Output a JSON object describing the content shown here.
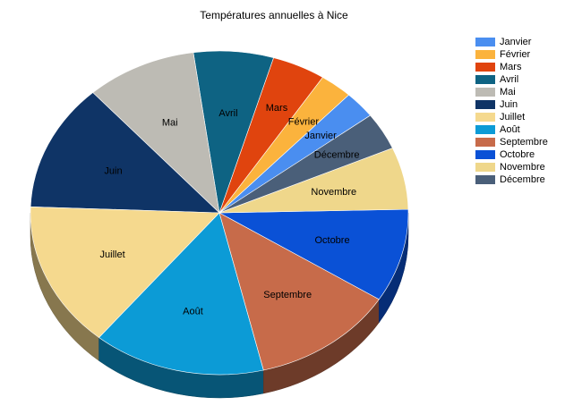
{
  "chart_data": {
    "type": "pie",
    "title": "Températures annuelles à Nice",
    "categories": [
      "Janvier",
      "Février",
      "Mars",
      "Avril",
      "Mai",
      "Juin",
      "Juillet",
      "Août",
      "Septembre",
      "Octobre",
      "Novembre",
      "Décembre"
    ],
    "values": [
      3.5,
      3.6,
      5.9,
      8.8,
      12.2,
      16.4,
      18.8,
      19.0,
      15.8,
      12.0,
      8.0,
      4.8
    ],
    "colors": [
      "#4a8ef0",
      "#fbb33d",
      "#e0440e",
      "#0e6383",
      "#bdbbb4",
      "#0f3466",
      "#f5d98e",
      "#0c9bd6",
      "#c76b4a",
      "#0a51d6",
      "#efd78b",
      "#4a5f79"
    ],
    "start_angle_deg": 37,
    "legend_position": "right",
    "three_d": true
  }
}
